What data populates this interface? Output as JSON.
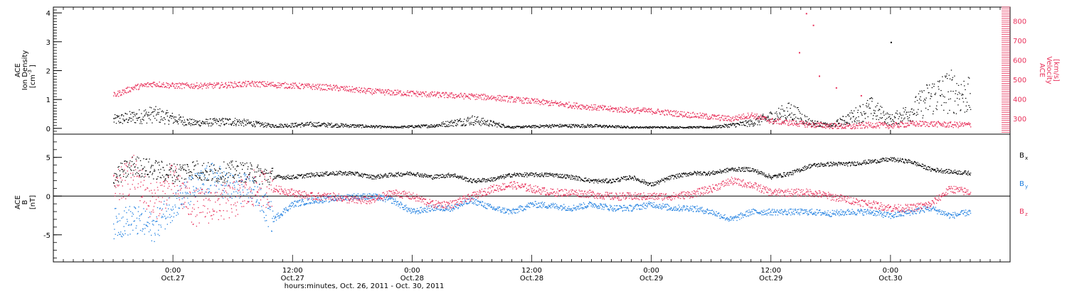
{
  "chart_data": [
    {
      "type": "scatter",
      "ylabel_lines": [
        "ACE",
        "Ion Density",
        "[cm",
        "-3",
        "]"
      ],
      "ylim": [
        -0.2,
        4.2
      ],
      "yticks": [
        0,
        1,
        2,
        3,
        4
      ],
      "y2label_lines": [
        "ACE",
        "Velocity",
        "[km/s]"
      ],
      "y2lim": [
        220,
        870
      ],
      "y2ticks": [
        300,
        400,
        500,
        600,
        700,
        800
      ],
      "series": [
        {
          "axis": "left",
          "color": "#000000",
          "x": [
            -6,
            -2,
            2,
            6,
            10,
            14,
            18,
            22,
            26,
            30,
            34,
            38,
            42,
            46,
            50,
            54,
            58,
            60,
            62,
            64,
            66,
            68,
            70,
            72,
            74,
            76,
            78,
            80
          ],
          "values": [
            0.3,
            0.5,
            0.2,
            0.25,
            0.1,
            0.15,
            0.1,
            0.05,
            0.1,
            0.3,
            0.05,
            0.1,
            0.1,
            0.05,
            0.05,
            0.05,
            0.2,
            0.4,
            0.6,
            0.2,
            0.1,
            0.4,
            0.7,
            0.3,
            0.6,
            1.1,
            1.3,
            1.1
          ]
        },
        {
          "axis": "right",
          "color": "#e8305a",
          "x": [
            -6,
            -4,
            -2,
            0,
            4,
            8,
            12,
            16,
            20,
            24,
            28,
            32,
            36,
            40,
            44,
            48,
            50,
            52,
            54,
            56,
            58,
            60,
            62,
            64,
            66,
            68,
            70,
            72,
            74,
            76,
            78,
            80
          ],
          "values": [
            420,
            460,
            480,
            470,
            470,
            480,
            470,
            460,
            440,
            430,
            420,
            410,
            390,
            370,
            350,
            340,
            330,
            320,
            310,
            300,
            320,
            290,
            280,
            270,
            265,
            260,
            270,
            265,
            275,
            275,
            270,
            270
          ]
        }
      ],
      "sparse_points": [
        {
          "x": 63.5,
          "y": 840,
          "axis": "right"
        },
        {
          "x": 64.2,
          "y": 780,
          "axis": "right"
        },
        {
          "x": 62.8,
          "y": 640,
          "axis": "right"
        },
        {
          "x": 64.8,
          "y": 520,
          "axis": "right"
        },
        {
          "x": 66.5,
          "y": 460,
          "axis": "right"
        },
        {
          "x": 69.0,
          "y": 420,
          "axis": "right"
        },
        {
          "x": 72.0,
          "y": 3.0,
          "axis": "left"
        }
      ]
    },
    {
      "type": "scatter",
      "ylabel_lines": [
        "ACE",
        "B",
        "[nT]"
      ],
      "ylim": [
        -8.5,
        8
      ],
      "yticks": [
        -5,
        0,
        5
      ],
      "zero_line": true,
      "series": [
        {
          "name": "B",
          "sub": "x",
          "color": "#000000",
          "x": [
            -6,
            -4,
            -2,
            0,
            2,
            4,
            6,
            8,
            10,
            12,
            14,
            16,
            18,
            20,
            22,
            24,
            26,
            28,
            30,
            32,
            34,
            36,
            38,
            40,
            42,
            44,
            46,
            48,
            50,
            52,
            54,
            56,
            58,
            60,
            62,
            64,
            66,
            68,
            70,
            72,
            74,
            76,
            78,
            80
          ],
          "values": [
            2.5,
            4.0,
            3.5,
            3.0,
            3.5,
            3.0,
            3.3,
            3.0,
            2.5,
            2.5,
            2.8,
            3.0,
            3.0,
            2.5,
            2.8,
            3.0,
            2.5,
            2.8,
            2.0,
            2.2,
            2.8,
            2.8,
            2.8,
            2.5,
            2.0,
            2.0,
            2.5,
            1.5,
            2.5,
            3.0,
            3.0,
            3.5,
            3.5,
            2.5,
            3.0,
            4.0,
            4.2,
            4.2,
            4.5,
            4.8,
            4.5,
            3.5,
            3.2,
            3.0
          ]
        },
        {
          "name": "B",
          "sub": "y",
          "color": "#1f7fe0",
          "x": [
            -6,
            -4,
            -2,
            0,
            2,
            4,
            6,
            8,
            10,
            12,
            14,
            16,
            18,
            20,
            22,
            24,
            26,
            28,
            30,
            32,
            34,
            36,
            38,
            40,
            42,
            44,
            46,
            48,
            50,
            52,
            54,
            56,
            58,
            60,
            62,
            64,
            66,
            68,
            70,
            72,
            74,
            76,
            78,
            80
          ],
          "values": [
            -3.5,
            -3.0,
            -4.0,
            -1.0,
            1.0,
            2.5,
            1.0,
            1.0,
            -3.0,
            -1.0,
            -0.5,
            -0.3,
            0.0,
            0.0,
            -0.5,
            -2.0,
            -1.5,
            -1.5,
            -0.5,
            -1.5,
            -2.0,
            -1.0,
            -1.2,
            -1.5,
            -1.0,
            -1.5,
            -1.5,
            -1.0,
            -1.5,
            -1.5,
            -2.0,
            -3.0,
            -2.0,
            -2.0,
            -2.0,
            -2.0,
            -2.2,
            -2.0,
            -2.0,
            -2.5,
            -2.0,
            -1.5,
            -2.5,
            -2.0
          ]
        },
        {
          "name": "B",
          "sub": "z",
          "color": "#e8305a",
          "x": [
            -6,
            -4,
            -2,
            0,
            2,
            4,
            6,
            8,
            10,
            12,
            14,
            16,
            18,
            20,
            22,
            24,
            26,
            28,
            30,
            32,
            34,
            36,
            38,
            40,
            42,
            44,
            46,
            48,
            50,
            52,
            54,
            56,
            58,
            60,
            62,
            64,
            66,
            68,
            70,
            72,
            74,
            76,
            78,
            80
          ],
          "values": [
            0.5,
            3.0,
            -1.0,
            2.0,
            -1.5,
            -1.0,
            -0.5,
            1.0,
            1.0,
            0.5,
            0.0,
            0.0,
            -0.5,
            -0.5,
            0.5,
            0.0,
            -1.0,
            -1.0,
            0.0,
            1.0,
            1.5,
            1.0,
            0.5,
            0.5,
            0.3,
            0.0,
            0.0,
            0.0,
            0.0,
            0.3,
            1.0,
            2.0,
            1.5,
            0.5,
            0.5,
            0.5,
            0.0,
            -0.5,
            -1.0,
            -1.5,
            -1.5,
            -1.0,
            1.0,
            0.5
          ]
        }
      ]
    }
  ],
  "x_axis": {
    "xlim": [
      -12,
      84
    ],
    "ticks": [
      {
        "x": 0,
        "time": "0:00",
        "date": "Oct.27"
      },
      {
        "x": 12,
        "time": "12:00",
        "date": "Oct.27"
      },
      {
        "x": 24,
        "time": "0:00",
        "date": "Oct.28"
      },
      {
        "x": 36,
        "time": "12:00",
        "date": "Oct.28"
      },
      {
        "x": 48,
        "time": "0:00",
        "date": "Oct.29"
      },
      {
        "x": 60,
        "time": "12:00",
        "date": "Oct.29"
      },
      {
        "x": 72,
        "time": "0:00",
        "date": "Oct.30"
      }
    ],
    "label": "hours:minutes, Oct. 26, 2011 - Oct. 30, 2011"
  }
}
